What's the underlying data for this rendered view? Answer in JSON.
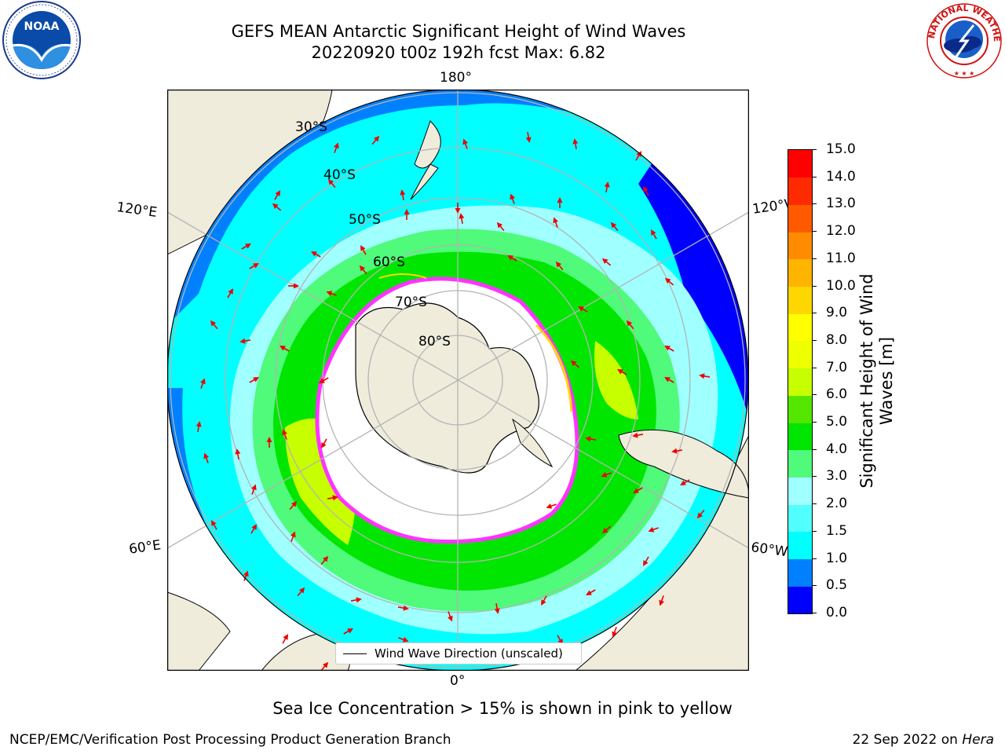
{
  "title": {
    "line1": "GEFS MEAN Antarctic Significant Height of Wind Waves",
    "line2": "20220920 t00z 192h fcst   Max: 6.82"
  },
  "map": {
    "projection": "south-polar-stereographic",
    "longitude_labels": {
      "top": "180°",
      "bottom": "0°",
      "upper_left": "120°E",
      "upper_right": "120°W",
      "lower_left": "60°E",
      "lower_right": "60°W"
    },
    "latitude_labels": [
      "30°S",
      "40°S",
      "50°S",
      "60°S",
      "70°S",
      "80°S"
    ],
    "colors": {
      "land": "#efecdc",
      "ice_shelf": "#ffffff",
      "sea_ice_edge": "#ff33ff",
      "arrow": "#ee0000",
      "grid": "#b4b4b4"
    }
  },
  "legend": {
    "label": "Wind Wave Direction (unscaled)"
  },
  "colorbar": {
    "title_line1": "Significant Height of Wind",
    "title_line2": "Waves [m]",
    "tick_labels": [
      "15.0",
      "14.0",
      "13.0",
      "12.0",
      "11.0",
      "10.0",
      "9.0",
      "8.0",
      "7.0",
      "6.0",
      "5.0",
      "4.0",
      "3.0",
      "2.0",
      "1.5",
      "1.0",
      "0.5",
      "0.0"
    ],
    "levels": [
      0.0,
      0.5,
      1.0,
      1.5,
      2.0,
      3.0,
      4.0,
      5.0,
      6.0,
      7.0,
      8.0,
      9.0,
      10.0,
      11.0,
      12.0,
      13.0,
      14.0,
      15.0
    ],
    "colors_bottom_to_top": [
      "#0000ff",
      "#0080ff",
      "#00ffff",
      "#52ffff",
      "#a0ffff",
      "#50fa7a",
      "#00e600",
      "#55e600",
      "#c7ff00",
      "#eeff00",
      "#ffff00",
      "#ffd700",
      "#ffb400",
      "#ff8c00",
      "#ff5a00",
      "#ff2a00",
      "#ff0000"
    ]
  },
  "footer": {
    "note": "Sea Ice Concentration > 15% is shown in pink to yellow",
    "credit_left": "NCEP/EMC/Verification Post Processing Product Generation Branch",
    "date": "22 Sep 2022 on",
    "machine": "Hera"
  },
  "logos": {
    "left": "noaa-logo",
    "left_text": "NOAA",
    "right": "nws-logo",
    "right_text": "NATIONAL WEATHER SERVICE"
  }
}
